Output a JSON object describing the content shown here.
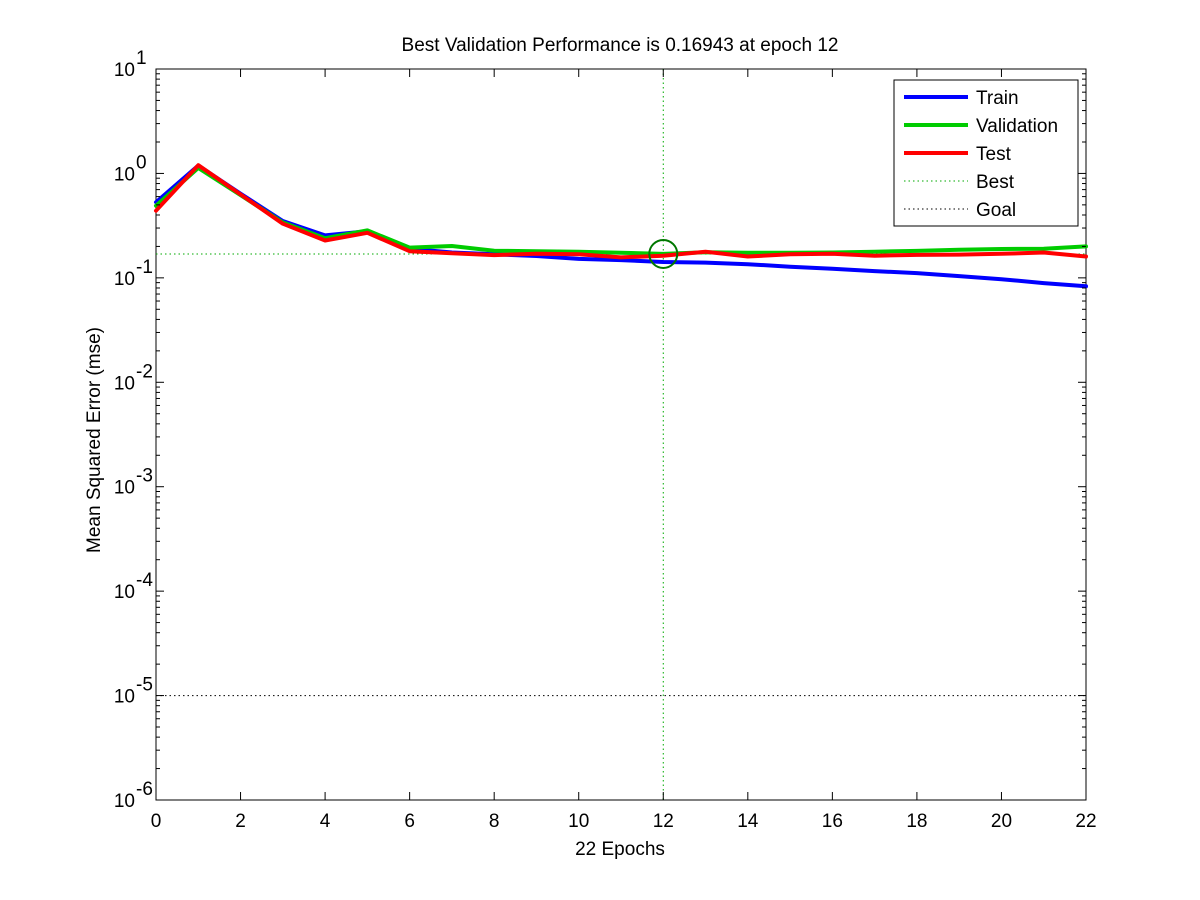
{
  "chart_data": {
    "type": "line",
    "title": "Best Validation Performance is 0.16943 at epoch 12",
    "xlabel": "22 Epochs",
    "ylabel": "Mean Squared Error  (mse)",
    "xlim": [
      0,
      22
    ],
    "ylim": [
      1e-06,
      10
    ],
    "yscale": "log",
    "x_ticks": [
      0,
      2,
      4,
      6,
      8,
      10,
      12,
      14,
      16,
      18,
      20,
      22
    ],
    "y_tick_exponents": [
      1,
      0,
      -1,
      -2,
      -3,
      -4,
      -5,
      -6
    ],
    "y_tick_base": "10",
    "grid": false,
    "legend_position": "top-right",
    "x": [
      0,
      1,
      2,
      3,
      4,
      5,
      6,
      7,
      8,
      9,
      10,
      11,
      12,
      13,
      14,
      15,
      16,
      17,
      18,
      19,
      20,
      21,
      22
    ],
    "series": [
      {
        "name": "Train",
        "color": "#0000ff",
        "values": [
          0.53,
          1.19,
          0.64,
          0.35,
          0.255,
          0.28,
          0.19,
          0.175,
          0.168,
          0.162,
          0.152,
          0.148,
          0.142,
          0.14,
          0.135,
          0.128,
          0.122,
          0.116,
          0.111,
          0.104,
          0.097,
          0.089,
          0.083
        ]
      },
      {
        "name": "Validation",
        "color": "#00cc00",
        "values": [
          0.49,
          1.13,
          0.62,
          0.34,
          0.24,
          0.285,
          0.195,
          0.202,
          0.182,
          0.18,
          0.178,
          0.174,
          0.16943,
          0.176,
          0.174,
          0.174,
          0.175,
          0.178,
          0.181,
          0.186,
          0.189,
          0.19,
          0.2
        ]
      },
      {
        "name": "Test",
        "color": "#ff0000",
        "values": [
          0.44,
          1.2,
          0.63,
          0.33,
          0.228,
          0.27,
          0.18,
          0.172,
          0.165,
          0.17,
          0.168,
          0.157,
          0.163,
          0.178,
          0.16,
          0.168,
          0.17,
          0.163,
          0.166,
          0.167,
          0.17,
          0.175,
          0.16
        ]
      }
    ],
    "best": {
      "name": "Best",
      "epoch": 12,
      "value": 0.16943,
      "color": "#00aa00",
      "marker_color": "#007700"
    },
    "goal": {
      "name": "Goal",
      "value": 1e-05,
      "color": "#000000"
    }
  }
}
